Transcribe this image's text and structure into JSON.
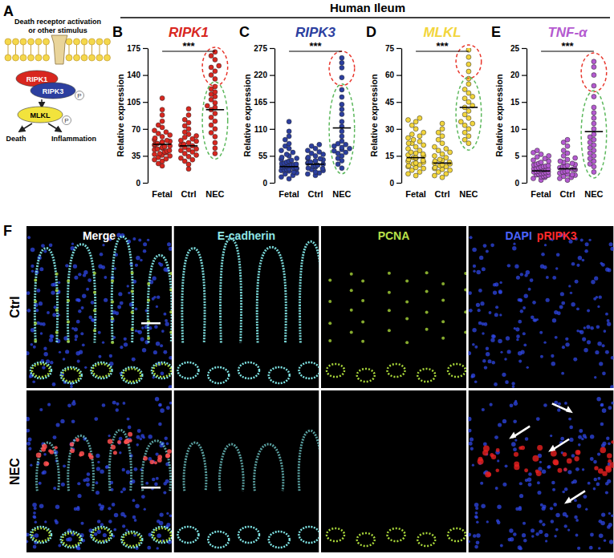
{
  "header": {
    "title": "Human Ileum"
  },
  "diagram": {
    "label": "A",
    "caption": [
      "Death receptor activation",
      "or other stimulus"
    ],
    "nodes": [
      {
        "text": "RIPK1",
        "color": "#d8271f"
      },
      {
        "text": "RIPK3",
        "color": "#2c3f9f"
      },
      {
        "text": "MLKL",
        "color": "#f2e33c"
      }
    ],
    "phospho": "P",
    "outputs": [
      "Death",
      "Inflammation"
    ]
  },
  "chart_data": [
    {
      "type": "strip",
      "panel": "B",
      "title": "RIPK1",
      "color": "#d8271f",
      "y_label": "Relative expression",
      "categories": [
        "Fetal",
        "Ctrl",
        "NEC"
      ],
      "values": [
        [
          22,
          25,
          28,
          30,
          31,
          33,
          35,
          36,
          37,
          38,
          39,
          40,
          41,
          42,
          43,
          44,
          45,
          46,
          47,
          48,
          49,
          50,
          51,
          52,
          53,
          54,
          55,
          56,
          58,
          60,
          62,
          64,
          66,
          68,
          72,
          75,
          80,
          88,
          95,
          110
        ],
        [
          18,
          24,
          28,
          30,
          32,
          34,
          36,
          38,
          40,
          42,
          43,
          44,
          46,
          48,
          49,
          50,
          52,
          54,
          55,
          57,
          59,
          61,
          63,
          66,
          70,
          74,
          78,
          82,
          88,
          96
        ],
        [
          38,
          45,
          52,
          60,
          65,
          70,
          75,
          80,
          85,
          90,
          95,
          98,
          100,
          104,
          108,
          112,
          115,
          118,
          122,
          125,
          135,
          140,
          145,
          150,
          152,
          160,
          165,
          170
        ]
      ],
      "means": [
        50,
        48,
        95
      ],
      "ylim": [
        0,
        175
      ],
      "yticks": [
        0,
        35,
        70,
        105,
        140,
        175
      ],
      "significance": "***",
      "highlights": [
        {
          "category": "NEC",
          "range": [
            130,
            172
          ],
          "color": "#e8362c"
        },
        {
          "category": "NEC",
          "range": [
            35,
            127
          ],
          "color": "#5cb85c"
        }
      ]
    },
    {
      "type": "strip",
      "panel": "C",
      "title": "RIPK3",
      "color": "#2c3f9f",
      "y_label": "Relative expression",
      "categories": [
        "Fetal",
        "Ctrl",
        "NEC"
      ],
      "values": [
        [
          8,
          12,
          15,
          18,
          20,
          22,
          24,
          25,
          26,
          27,
          28,
          29,
          30,
          31,
          32,
          33,
          34,
          35,
          36,
          37,
          38,
          39,
          40,
          42,
          44,
          46,
          48,
          50,
          52,
          55,
          58,
          62,
          66,
          70,
          75,
          80,
          88,
          95,
          105,
          125
        ],
        [
          15,
          18,
          20,
          22,
          25,
          27,
          29,
          30,
          32,
          34,
          35,
          36,
          38,
          40,
          41,
          42,
          44,
          45,
          47,
          49,
          50,
          52,
          55,
          58,
          60,
          63,
          66,
          70,
          75,
          78
        ],
        [
          30,
          38,
          45,
          50,
          55,
          60,
          62,
          65,
          68,
          70,
          72,
          75,
          78,
          80,
          85,
          95,
          105,
          115,
          125,
          140,
          150,
          160,
          175,
          190,
          215,
          235,
          245,
          255
        ]
      ],
      "means": [
        33,
        38,
        112
      ],
      "ylim": [
        0,
        275
      ],
      "yticks": [
        0,
        55,
        110,
        165,
        220,
        275
      ],
      "significance": "***",
      "highlights": [
        {
          "category": "NEC",
          "range": [
            205,
            262
          ],
          "color": "#e8362c"
        },
        {
          "category": "NEC",
          "range": [
            25,
            195
          ],
          "color": "#5cb85c"
        }
      ]
    },
    {
      "type": "strip",
      "panel": "D",
      "title": "MLKL",
      "color": "#f2d53c",
      "y_label": "Relative expression",
      "categories": [
        "Fetal",
        "Ctrl",
        "NEC"
      ],
      "values": [
        [
          4,
          5,
          6,
          7,
          8,
          8.5,
          9,
          9.5,
          10,
          10.5,
          11,
          11.5,
          12,
          12.5,
          13,
          13.5,
          14,
          14,
          15,
          15.5,
          16,
          16.5,
          17,
          18,
          19,
          20,
          21,
          22,
          23,
          24,
          25,
          26,
          27,
          28,
          30,
          32,
          34,
          35,
          36,
          22
        ],
        [
          3,
          4,
          5,
          6,
          7,
          7.5,
          8,
          8.5,
          9,
          9.5,
          10,
          10.5,
          11,
          11.5,
          12,
          12.5,
          13,
          14,
          15,
          16,
          17,
          18,
          19,
          20,
          22,
          24,
          26,
          28,
          30,
          33
        ],
        [
          22,
          24,
          26,
          28,
          30,
          32,
          33,
          34,
          36,
          38,
          40,
          42,
          43,
          45,
          47,
          48,
          50,
          52,
          55,
          58,
          62,
          66,
          70,
          74
        ]
      ],
      "means": [
        14,
        11,
        42
      ],
      "ylim": [
        0,
        75
      ],
      "yticks": [
        0,
        15,
        30,
        45,
        60,
        75
      ],
      "significance": "***",
      "highlights": [
        {
          "category": "NEC",
          "range": [
            60,
            75
          ],
          "color": "#e8362c"
        },
        {
          "category": "NEC",
          "range": [
            20,
            57
          ],
          "color": "#5cb85c"
        }
      ]
    },
    {
      "type": "strip",
      "panel": "E",
      "title": "TNF-α",
      "color": "#b45ad0",
      "y_label": "Relative expression",
      "categories": [
        "Fetal",
        "Ctrl",
        "NEC"
      ],
      "values": [
        [
          0.5,
          0.8,
          1,
          1.1,
          1.2,
          1.3,
          1.4,
          1.5,
          1.6,
          1.7,
          1.8,
          1.9,
          2,
          2,
          2.1,
          2.2,
          2.3,
          2.4,
          2.5,
          2.6,
          2.7,
          2.8,
          2.9,
          3,
          3.1,
          3.2,
          3.4,
          3.6,
          3.8,
          4,
          4.2,
          4.5,
          4.8,
          5,
          5.3,
          5.6,
          6,
          3.3,
          2.5,
          1.5
        ],
        [
          0.5,
          0.8,
          1,
          1.2,
          1.4,
          1.5,
          1.6,
          1.8,
          2,
          2.1,
          2.2,
          2.4,
          2.5,
          2.6,
          2.8,
          3,
          3.2,
          3.4,
          3.6,
          3.8,
          4,
          4.3,
          4.6,
          5,
          5.5,
          6,
          6.8,
          7.5,
          8,
          3
        ],
        [
          2,
          3,
          3.5,
          4,
          4.5,
          5,
          5.5,
          6,
          6.5,
          7,
          7.5,
          8,
          8.5,
          9,
          10,
          11,
          12,
          13,
          14,
          16,
          18,
          20,
          21.5,
          22.5
        ]
      ],
      "means": [
        2.2,
        2.6,
        9.5
      ],
      "ylim": [
        0,
        25
      ],
      "yticks": [
        0,
        5,
        10,
        15,
        20,
        25
      ],
      "significance": "***",
      "highlights": [
        {
          "category": "NEC",
          "range": [
            17.5,
            23.5
          ],
          "color": "#e8362c"
        },
        {
          "category": "NEC",
          "range": [
            1.5,
            16.5
          ],
          "color": "#5cb85c"
        }
      ]
    }
  ],
  "image_panel": {
    "label": "F",
    "rows": [
      "Ctrl",
      "NEC"
    ],
    "columns": [
      {
        "parts": [
          {
            "text": "Merge",
            "color": "#ffffff"
          }
        ]
      },
      {
        "parts": [
          {
            "text": "E-cadherin",
            "color": "#8fe6e6"
          }
        ]
      },
      {
        "parts": [
          {
            "text": "PCNA",
            "color": "#b8e04a"
          }
        ]
      },
      {
        "parts": [
          {
            "text": "DAPI",
            "color": "#4a63ff"
          },
          {
            "text": "pRIPK3",
            "color": "#ff2a2a"
          }
        ]
      }
    ]
  }
}
